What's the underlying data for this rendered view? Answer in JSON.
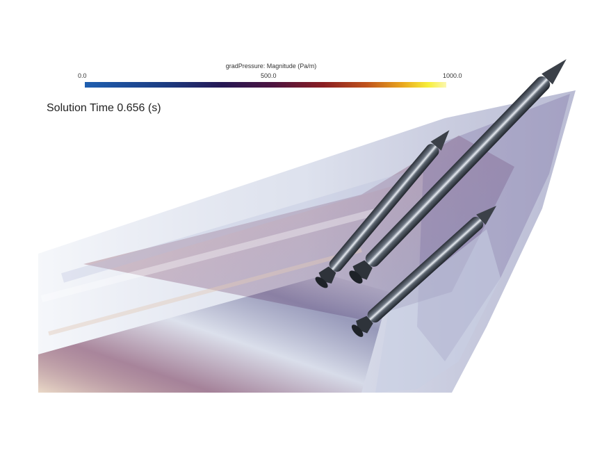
{
  "legend": {
    "title": "gradPressure: Magnitude (Pa/m)",
    "min_label": "0.0",
    "mid_label": "500.0",
    "max_label": "1000.0",
    "colormap": [
      "#1f5fb0",
      "#1c3c82",
      "#261854",
      "#4d1440",
      "#8a1e22",
      "#c0531c",
      "#eaa81e",
      "#f7ef3a",
      "#fbf7b0"
    ]
  },
  "solution_time": {
    "text": "Solution Time 0.656 (s)"
  },
  "scene": {
    "body_color": "#3b4048",
    "highlight_color": "#ffffff",
    "shock_colors": [
      "#2e2a6e",
      "#6a2a55",
      "#b0552a",
      "#d9b07a"
    ]
  }
}
